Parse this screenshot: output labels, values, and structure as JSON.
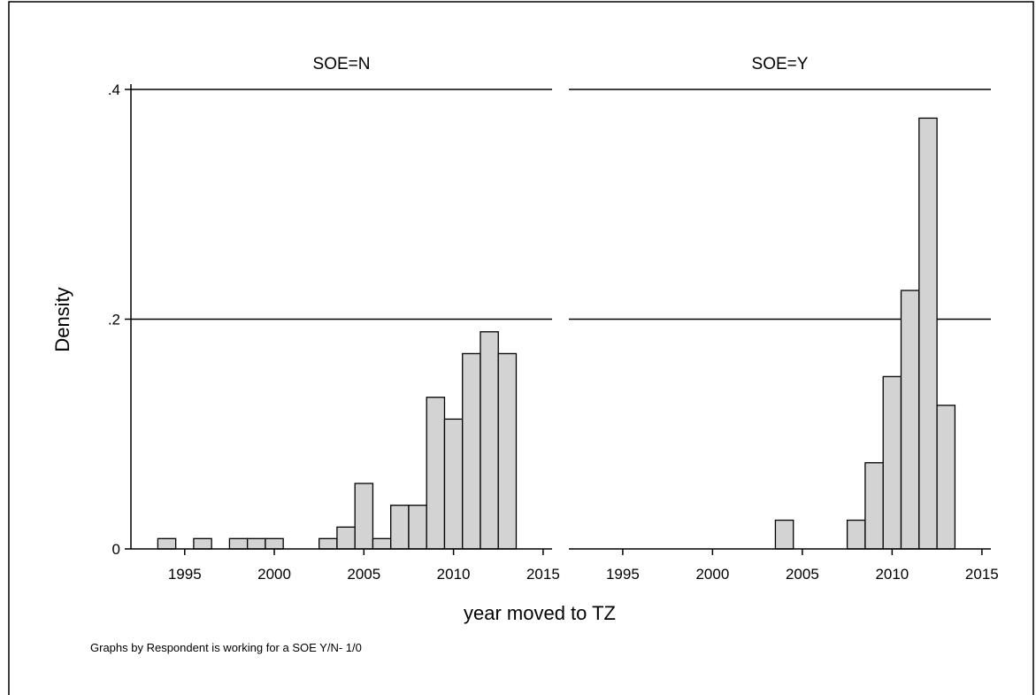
{
  "chart_data": {
    "type": "bar",
    "subtype": "histogram",
    "xlabel": "year moved to TZ",
    "ylabel": "Density",
    "note": "Graphs by Respondent is working for a SOE Y/N- 1/0",
    "xlim": [
      1992,
      2015.5
    ],
    "ylim": [
      0,
      0.4
    ],
    "xticks": [
      1995,
      2000,
      2005,
      2010,
      2015
    ],
    "yticks": [
      0,
      0.2,
      0.4
    ],
    "ytick_labels": [
      "0",
      ".2",
      ".4"
    ],
    "grid": true,
    "bin_width": 1,
    "panels": [
      {
        "title": "SOE=N",
        "bins": [
          {
            "x": 1994,
            "density": 0.009
          },
          {
            "x": 1996,
            "density": 0.009
          },
          {
            "x": 1998,
            "density": 0.009
          },
          {
            "x": 1999,
            "density": 0.009
          },
          {
            "x": 2000,
            "density": 0.009
          },
          {
            "x": 2003,
            "density": 0.009
          },
          {
            "x": 2004,
            "density": 0.019
          },
          {
            "x": 2005,
            "density": 0.057
          },
          {
            "x": 2006,
            "density": 0.009
          },
          {
            "x": 2007,
            "density": 0.038
          },
          {
            "x": 2008,
            "density": 0.038
          },
          {
            "x": 2009,
            "density": 0.132
          },
          {
            "x": 2010,
            "density": 0.113
          },
          {
            "x": 2011,
            "density": 0.17
          },
          {
            "x": 2012,
            "density": 0.189
          },
          {
            "x": 2013,
            "density": 0.17
          }
        ]
      },
      {
        "title": "SOE=Y",
        "bins": [
          {
            "x": 2004,
            "density": 0.025
          },
          {
            "x": 2008,
            "density": 0.025
          },
          {
            "x": 2009,
            "density": 0.075
          },
          {
            "x": 2010,
            "density": 0.15
          },
          {
            "x": 2011,
            "density": 0.225
          },
          {
            "x": 2012,
            "density": 0.375
          },
          {
            "x": 2013,
            "density": 0.125
          }
        ]
      }
    ]
  }
}
